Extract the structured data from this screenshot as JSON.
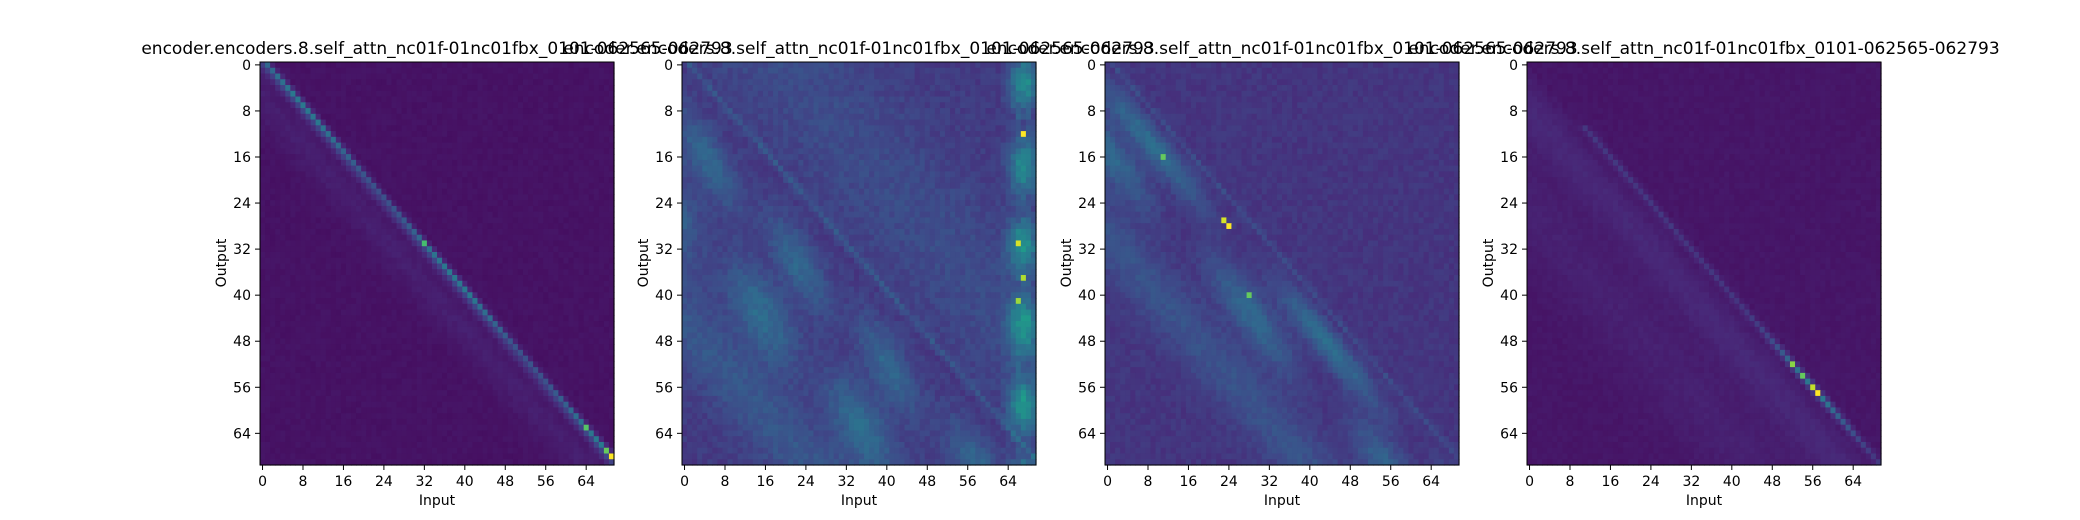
{
  "chart_data": [
    {
      "type": "heatmap",
      "title": "encoder.encoders.8.self_attn_nc01f-01nc01fbx_0101-062565-062793",
      "xlabel": "Input",
      "ylabel": "Output",
      "x_ticks": [
        0,
        8,
        16,
        24,
        32,
        40,
        48,
        56,
        64
      ],
      "y_ticks": [
        0,
        8,
        16,
        24,
        32,
        40,
        48,
        56,
        64
      ],
      "n_input": 70,
      "n_output": 70,
      "colormap": "viridis",
      "pattern": "Sharp main diagonal attention; brightest cell at bottom-right corner (output 68, input 69).",
      "bright_cells": [
        {
          "input": 69,
          "output": 68,
          "value": 1.0
        },
        {
          "input": 68,
          "output": 67,
          "value": 0.6
        },
        {
          "input": 64,
          "output": 63,
          "value": 0.55
        },
        {
          "input": 32,
          "output": 31,
          "value": 0.5
        }
      ]
    },
    {
      "type": "heatmap",
      "title": "encoder.encoders.8.self_attn_nc01f-01nc01fbx_0101-062565-062793",
      "xlabel": "Input",
      "ylabel": "Output",
      "x_ticks": [
        0,
        8,
        16,
        24,
        32,
        40,
        48,
        56,
        64
      ],
      "y_ticks": [
        0,
        8,
        16,
        24,
        32,
        40,
        48,
        56,
        64
      ],
      "n_input": 70,
      "n_output": 70,
      "colormap": "viridis",
      "pattern": "Diffuse diagonal bands below the main diagonal; bright column near inputs 64-69.",
      "bright_cells": [
        {
          "input": 67,
          "output": 12,
          "value": 1.0
        },
        {
          "input": 66,
          "output": 31,
          "value": 0.9
        },
        {
          "input": 67,
          "output": 37,
          "value": 0.8
        },
        {
          "input": 66,
          "output": 41,
          "value": 0.75
        }
      ]
    },
    {
      "type": "heatmap",
      "title": "encoder.encoders.8.self_attn_nc01f-01nc01fbx_0101-062565-062793",
      "xlabel": "Input",
      "ylabel": "Output",
      "x_ticks": [
        0,
        8,
        16,
        24,
        32,
        40,
        48,
        56,
        64
      ],
      "y_ticks": [
        0,
        8,
        16,
        24,
        32,
        40,
        48,
        56,
        64
      ],
      "n_input": 70,
      "n_output": 70,
      "colormap": "viridis",
      "pattern": "Parallel diagonal bands below the main diagonal; brightest region around input 24, output 28.",
      "bright_cells": [
        {
          "input": 24,
          "output": 28,
          "value": 1.0
        },
        {
          "input": 23,
          "output": 27,
          "value": 0.9
        },
        {
          "input": 11,
          "output": 16,
          "value": 0.6
        },
        {
          "input": 28,
          "output": 40,
          "value": 0.6
        }
      ]
    },
    {
      "type": "heatmap",
      "title": "encoder.encoders.8.self_attn_nc01f-01nc01fbx_0101-062565-062793",
      "xlabel": "Input",
      "ylabel": "Output",
      "x_ticks": [
        0,
        8,
        16,
        24,
        32,
        40,
        48,
        56,
        64
      ],
      "y_ticks": [
        0,
        8,
        16,
        24,
        32,
        40,
        48,
        56,
        64
      ],
      "n_input": 70,
      "n_output": 70,
      "colormap": "viridis",
      "pattern": "Faint main diagonal starting near output 10; brightest cells near inputs 55-58.",
      "bright_cells": [
        {
          "input": 57,
          "output": 57,
          "value": 1.0
        },
        {
          "input": 56,
          "output": 56,
          "value": 0.85
        },
        {
          "input": 52,
          "output": 52,
          "value": 0.7
        },
        {
          "input": 54,
          "output": 54,
          "value": 0.6
        }
      ]
    }
  ]
}
